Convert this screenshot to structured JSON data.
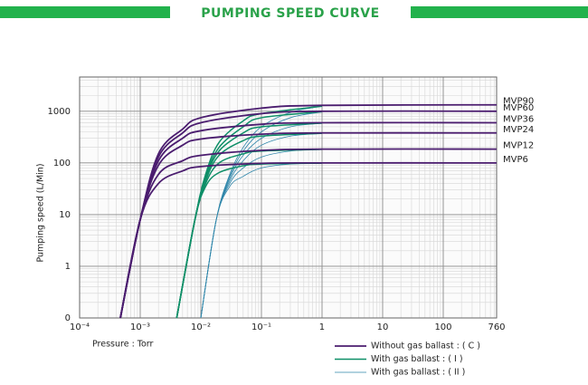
{
  "chart_data": {
    "type": "line",
    "title": "PUMPING SPEED CURVE",
    "x_label": "Pressure : Torr",
    "y_label": "Pumping speed (L/Min)",
    "xscale": "log",
    "yscale": "log",
    "grid": true,
    "xlim": [
      0.0001,
      760
    ],
    "xticks": [
      {
        "value": 0.0001,
        "label": "10⁻⁴"
      },
      {
        "value": 0.001,
        "label": "10⁻³"
      },
      {
        "value": 0.01,
        "label": "10⁻²"
      },
      {
        "value": 0.1,
        "label": "10⁻¹"
      },
      1,
      10,
      100,
      760
    ],
    "ylim": [
      0.1,
      4600
    ],
    "yticks": [
      {
        "value": 0.1,
        "label": "0"
      },
      1,
      10,
      100,
      1000
    ],
    "legend": [
      {
        "label": "Without gas ballast : ( C )",
        "color": "#4b1d6f"
      },
      {
        "label": "With gas ballast : ( I )",
        "color": "#0f8f68"
      },
      {
        "label": "With gas ballast : ( II )",
        "color": "#2f86aa"
      }
    ],
    "series": [
      {
        "name": "MVP90",
        "lines": [
          {
            "x": [
              0.00047,
              0.001,
              0.002,
              0.005,
              0.01,
              0.1,
              1,
              760
            ],
            "values": [
              0.1,
              8,
              150,
              450,
              750,
              1150,
              1300,
              1330
            ]
          },
          {
            "x": [
              0.004,
              0.008,
              0.012,
              0.02,
              0.05,
              0.1,
              1
            ],
            "values": [
              0.1,
              8,
              60,
              250,
              650,
              900,
              1250
            ]
          },
          {
            "x": [
              0.01,
              0.018,
              0.03,
              0.05,
              0.1,
              0.3,
              1
            ],
            "values": [
              0.1,
              8,
              60,
              200,
              500,
              950,
              1250
            ]
          }
        ]
      },
      {
        "name": "MVP60",
        "lines": [
          {
            "x": [
              0.00047,
              0.001,
              0.002,
              0.005,
              0.01,
              0.1,
              1,
              760
            ],
            "values": [
              0.1,
              8,
              130,
              380,
              600,
              900,
              1000,
              1000
            ]
          },
          {
            "x": [
              0.004,
              0.008,
              0.012,
              0.02,
              0.05,
              0.1,
              1
            ],
            "values": [
              0.1,
              8,
              55,
              200,
              500,
              750,
              980
            ]
          },
          {
            "x": [
              0.01,
              0.018,
              0.03,
              0.05,
              0.1,
              0.3,
              1
            ],
            "values": [
              0.1,
              8,
              55,
              170,
              400,
              750,
              970
            ]
          }
        ]
      },
      {
        "name": "MVP36",
        "lines": [
          {
            "x": [
              0.00047,
              0.001,
              0.002,
              0.005,
              0.01,
              0.1,
              1,
              760
            ],
            "values": [
              0.1,
              8,
              110,
              300,
              420,
              560,
              600,
              600
            ]
          },
          {
            "x": [
              0.004,
              0.008,
              0.012,
              0.02,
              0.05,
              0.1,
              1
            ],
            "values": [
              0.1,
              8,
              50,
              170,
              380,
              500,
              590
            ]
          },
          {
            "x": [
              0.01,
              0.018,
              0.03,
              0.05,
              0.1,
              0.3,
              1
            ],
            "values": [
              0.1,
              8,
              50,
              140,
              300,
              500,
              585
            ]
          }
        ]
      },
      {
        "name": "MVP24",
        "lines": [
          {
            "x": [
              0.00047,
              0.001,
              0.002,
              0.005,
              0.01,
              0.1,
              1,
              760
            ],
            "values": [
              0.1,
              8,
              90,
              220,
              290,
              360,
              380,
              380
            ]
          },
          {
            "x": [
              0.004,
              0.008,
              0.012,
              0.02,
              0.05,
              0.1,
              1
            ],
            "values": [
              0.1,
              8,
              45,
              140,
              270,
              330,
              375
            ]
          },
          {
            "x": [
              0.01,
              0.018,
              0.03,
              0.05,
              0.1,
              0.3,
              1
            ],
            "values": [
              0.1,
              8,
              45,
              110,
              220,
              330,
              372
            ]
          }
        ]
      },
      {
        "name": "MVP12",
        "lines": [
          {
            "x": [
              0.00047,
              0.001,
              0.002,
              0.005,
              0.01,
              0.1,
              1,
              760
            ],
            "values": [
              0.1,
              8,
              60,
              110,
              140,
              175,
              185,
              185
            ]
          },
          {
            "x": [
              0.004,
              0.008,
              0.012,
              0.02,
              0.05,
              0.1,
              1
            ],
            "values": [
              0.1,
              8,
              40,
              100,
              150,
              170,
              183
            ]
          },
          {
            "x": [
              0.01,
              0.018,
              0.03,
              0.05,
              0.1,
              0.3,
              1
            ],
            "values": [
              0.1,
              8,
              40,
              80,
              130,
              170,
              182
            ]
          }
        ]
      },
      {
        "name": "MVP6",
        "lines": [
          {
            "x": [
              0.00047,
              0.001,
              0.002,
              0.005,
              0.01,
              0.1,
              1,
              760
            ],
            "values": [
              0.1,
              8,
              40,
              70,
              85,
              98,
              100,
              100
            ]
          },
          {
            "x": [
              0.004,
              0.008,
              0.012,
              0.02,
              0.05,
              0.1,
              1
            ],
            "values": [
              0.1,
              8,
              35,
              65,
              88,
              95,
              99
            ]
          },
          {
            "x": [
              0.01,
              0.018,
              0.03,
              0.05,
              0.1,
              0.3,
              1
            ],
            "values": [
              0.1,
              8,
              35,
              55,
              80,
              95,
              99
            ]
          }
        ]
      }
    ]
  }
}
